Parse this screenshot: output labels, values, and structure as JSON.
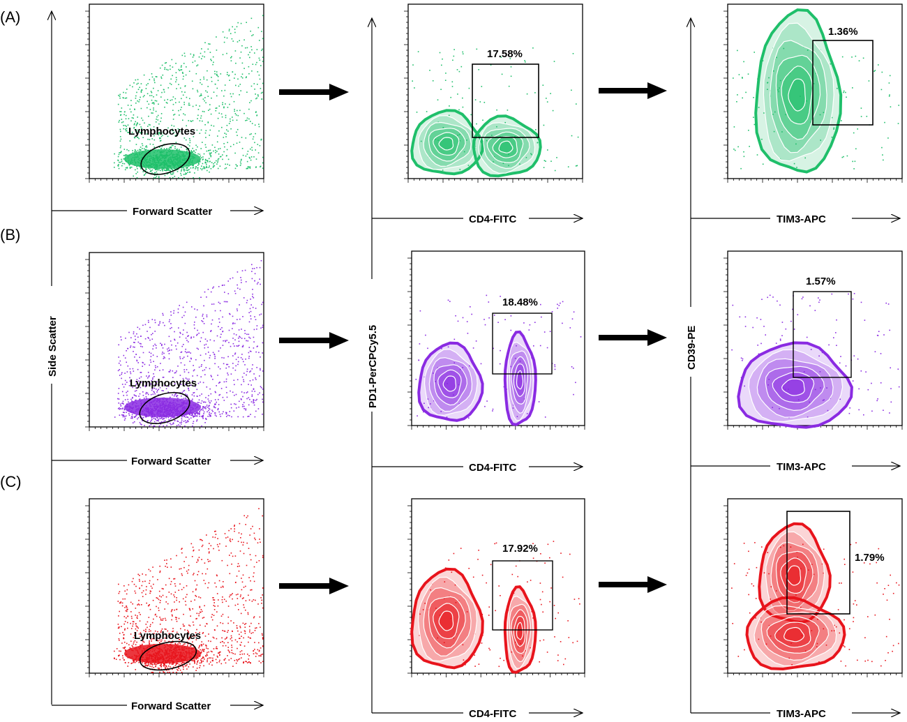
{
  "figure": {
    "row_labels": [
      "(A)",
      "(B)",
      "(C)"
    ],
    "y_axis_labels": {
      "left": "Side Scatter",
      "middle": "PD1-PerCPCy5.5",
      "right": "CD39-PE"
    },
    "x_axis_labels": {
      "left": "Forward Scatter",
      "middle": "CD4-FITC",
      "right": "TIM3-APC"
    },
    "gate_label": "Lymphocytes"
  },
  "colors": {
    "green": "#1fbf6a",
    "purple": "#8a2be2",
    "red": "#e8141c",
    "frame": "#000000"
  },
  "chart_data": [
    {
      "type": "scatter",
      "row": "A",
      "panel": "Forward vs Side Scatter",
      "color": "green",
      "gate": "Lymphocytes",
      "xlabel": "Forward Scatter",
      "ylabel": "Side Scatter"
    },
    {
      "type": "scatter",
      "row": "A",
      "panel": "CD4 vs PD1",
      "color": "green",
      "xlabel": "CD4-FITC",
      "ylabel": "PD1-PerCPCy5.5",
      "gate_percent": "17.58%"
    },
    {
      "type": "scatter",
      "row": "A",
      "panel": "TIM3 vs CD39",
      "color": "green",
      "xlabel": "TIM3-APC",
      "ylabel": "CD39-PE",
      "gate_percent": "1.36%"
    },
    {
      "type": "scatter",
      "row": "B",
      "panel": "Forward vs Side Scatter",
      "color": "purple",
      "gate": "Lymphocytes",
      "xlabel": "Forward Scatter",
      "ylabel": "Side Scatter"
    },
    {
      "type": "scatter",
      "row": "B",
      "panel": "CD4 vs PD1",
      "color": "purple",
      "xlabel": "CD4-FITC",
      "ylabel": "PD1-PerCPCy5.5",
      "gate_percent": "18.48%"
    },
    {
      "type": "scatter",
      "row": "B",
      "panel": "TIM3 vs CD39",
      "color": "purple",
      "xlabel": "TIM3-APC",
      "ylabel": "CD39-PE",
      "gate_percent": "1.57%"
    },
    {
      "type": "scatter",
      "row": "C",
      "panel": "Forward vs Side Scatter",
      "color": "red",
      "gate": "Lymphocytes",
      "xlabel": "Forward Scatter",
      "ylabel": "Side Scatter"
    },
    {
      "type": "scatter",
      "row": "C",
      "panel": "CD4 vs PD1",
      "color": "red",
      "xlabel": "CD4-FITC",
      "ylabel": "PD1-PerCPCy5.5",
      "gate_percent": "17.92%"
    },
    {
      "type": "scatter",
      "row": "C",
      "panel": "TIM3 vs CD39",
      "color": "red",
      "xlabel": "TIM3-APC",
      "ylabel": "CD39-PE",
      "gate_percent": "1.79%"
    }
  ]
}
